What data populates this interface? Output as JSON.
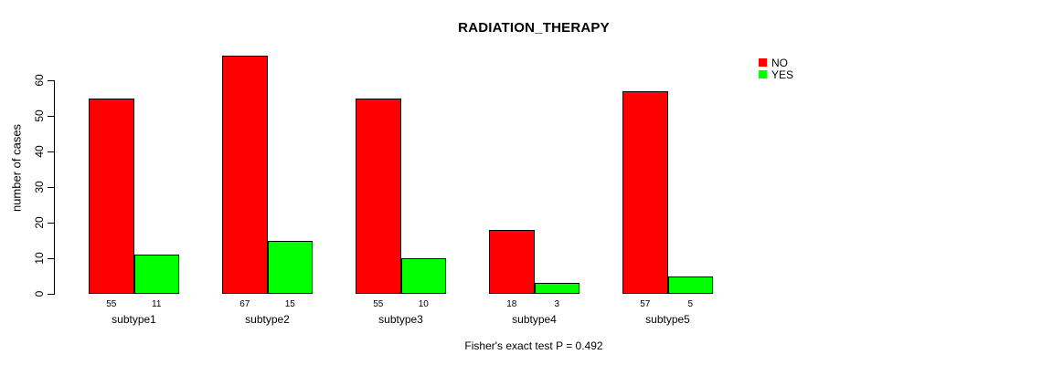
{
  "chart_data": {
    "type": "bar",
    "title": "RADIATION_THERAPY",
    "ylabel": "number of cases",
    "xlabel": "",
    "categories": [
      "subtype1",
      "subtype2",
      "subtype3",
      "subtype4",
      "subtype5"
    ],
    "series": [
      {
        "name": "NO",
        "color": "#ff0000",
        "values": [
          55,
          67,
          55,
          18,
          57
        ]
      },
      {
        "name": "YES",
        "color": "#00ff00",
        "values": [
          11,
          15,
          10,
          3,
          5
        ]
      }
    ],
    "y_ticks": [
      0,
      10,
      20,
      30,
      40,
      50,
      60
    ],
    "ylim": [
      0,
      67
    ],
    "grid": false,
    "legend_position": "top-right",
    "bar_value_labels": true,
    "annotation": "Fisher's exact test P = 0.492"
  }
}
